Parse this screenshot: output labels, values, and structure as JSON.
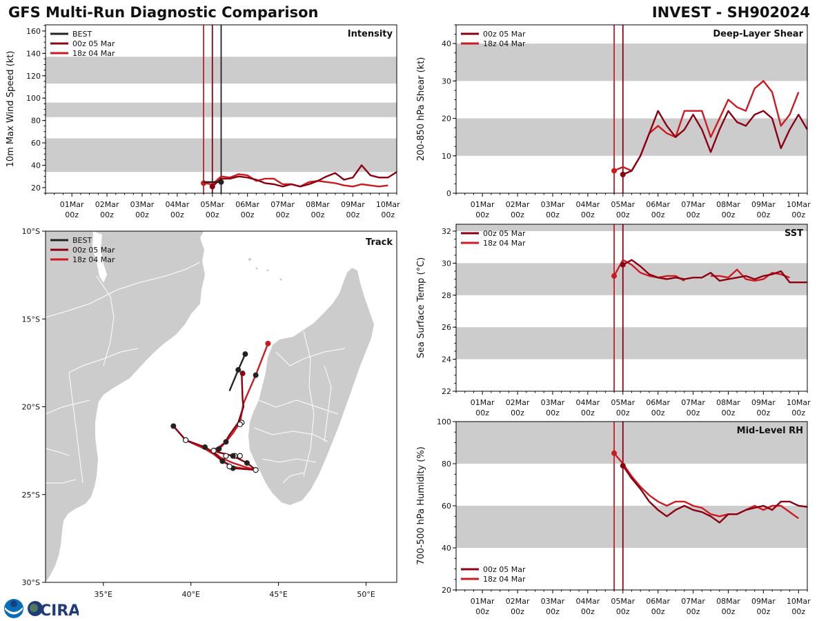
{
  "header": {
    "title_left": "GFS Multi-Run Diagnostic Comparison",
    "title_right": "INVEST - SH902024"
  },
  "logos": [
    "NOAA",
    "CIRA"
  ],
  "colors": {
    "best": "#222222",
    "run_00z_05mar": "#8b0010",
    "run_18z_04mar": "#cc1a22",
    "band": "#cccccc",
    "land": "#cccccc",
    "border": "#ffffff"
  },
  "legend": {
    "best": "BEST",
    "run_a": "00z 05 Mar",
    "run_b": "18z 04 Mar"
  },
  "time_axis": {
    "tick_labels_top": [
      "01Mar",
      "02Mar",
      "03Mar",
      "04Mar",
      "05Mar",
      "06Mar",
      "07Mar",
      "08Mar",
      "09Mar",
      "10Mar"
    ],
    "tick_label_bottom": "00z",
    "range_days": [
      -0.75,
      9.25
    ],
    "init_lines": {
      "run_b_day": 3.75,
      "run_a_day": 4.0,
      "best_last_day": 4.25
    }
  },
  "chart_data": [
    {
      "id": "intensity",
      "type": "line",
      "title": "Intensity",
      "ylabel": "10m Max Wind Speed (kt)",
      "ylim": [
        15,
        165.5
      ],
      "yticks": [
        20,
        40,
        60,
        80,
        100,
        120,
        140,
        160
      ],
      "bands": [
        [
          34,
          64
        ],
        [
          83,
          96
        ],
        [
          113,
          137
        ]
      ],
      "x_unit": "days since 01Mar 00z",
      "series": [
        {
          "name": "BEST",
          "key": "best",
          "x": [
            3.75,
            4.0,
            4.25
          ],
          "values": [
            25,
            25,
            25
          ],
          "marker_x": [
            4.25
          ],
          "marker_values": [
            25
          ]
        },
        {
          "name": "00z 05 Mar",
          "key": "run_a",
          "x": [
            4.0,
            4.25,
            4.5,
            4.75,
            5.0,
            5.25,
            5.5,
            5.75,
            6.0,
            6.25,
            6.5,
            6.75,
            7.0,
            7.25,
            7.5,
            7.75,
            8.0,
            8.25,
            8.5,
            8.75,
            9.0,
            9.25
          ],
          "values": [
            21,
            28,
            28,
            30,
            29,
            27,
            24,
            23,
            21,
            23,
            21,
            23,
            26,
            30,
            33,
            27,
            29,
            40,
            31,
            29,
            29,
            34
          ],
          "marker_x": [
            4.0
          ],
          "marker_values": [
            21
          ]
        },
        {
          "name": "18z 04 Mar",
          "key": "run_b",
          "x": [
            3.75,
            4.0,
            4.25,
            4.5,
            4.75,
            5.0,
            5.25,
            5.5,
            5.75,
            6.0,
            6.25,
            6.5,
            6.75,
            7.0,
            7.25,
            7.5,
            7.75,
            8.0,
            8.25,
            8.5,
            8.75,
            9.0
          ],
          "values": [
            24,
            23,
            30,
            29,
            32,
            31,
            26,
            28,
            28,
            23,
            23,
            21,
            25,
            26,
            25,
            24,
            22,
            21,
            23,
            22,
            21,
            22
          ],
          "marker_x": [
            3.75
          ],
          "marker_values": [
            24
          ]
        }
      ]
    },
    {
      "id": "shear",
      "type": "line",
      "title": "Deep-Layer Shear",
      "ylabel": "200-850 hPa Shear (kt)",
      "ylim": [
        0,
        45
      ],
      "yticks": [
        0,
        10,
        20,
        30,
        40
      ],
      "bands": [
        [
          10,
          20
        ],
        [
          30,
          40
        ]
      ],
      "series": [
        {
          "name": "00z 05 Mar",
          "key": "run_a",
          "x": [
            4.0,
            4.25,
            4.5,
            4.75,
            5.0,
            5.25,
            5.5,
            5.75,
            6.0,
            6.25,
            6.5,
            6.75,
            7.0,
            7.25,
            7.5,
            7.75,
            8.0,
            8.25,
            8.5,
            8.75,
            9.0,
            9.25
          ],
          "values": [
            5,
            6,
            10,
            16,
            22,
            18,
            15,
            17,
            21,
            17,
            11,
            17,
            22,
            19,
            18,
            21,
            22,
            20,
            12,
            17,
            21,
            17
          ],
          "marker_x": [
            4.0
          ],
          "marker_values": [
            5
          ]
        },
        {
          "name": "18z 04 Mar",
          "key": "run_b",
          "x": [
            3.75,
            4.0,
            4.25,
            4.5,
            4.75,
            5.0,
            5.25,
            5.5,
            5.75,
            6.0,
            6.25,
            6.5,
            6.75,
            7.0,
            7.25,
            7.5,
            7.75,
            8.0,
            8.25,
            8.5,
            8.75,
            9.0
          ],
          "values": [
            6,
            7,
            6,
            10,
            16,
            18,
            16,
            15,
            22,
            22,
            22,
            15,
            20,
            25,
            23,
            22,
            28,
            30,
            27,
            18,
            21,
            27
          ],
          "marker_x": [
            3.75
          ],
          "marker_values": [
            6
          ]
        }
      ]
    },
    {
      "id": "sst",
      "type": "line",
      "title": "SST",
      "ylabel": "Sea Surface Temp (°C)",
      "ylim": [
        22,
        32.43
      ],
      "yticks": [
        22,
        24,
        26,
        28,
        30,
        32
      ],
      "bands": [
        [
          24,
          26
        ],
        [
          28,
          30
        ],
        [
          32,
          34
        ]
      ],
      "series": [
        {
          "name": "00z 05 Mar",
          "key": "run_a",
          "x": [
            4.0,
            4.25,
            4.5,
            4.75,
            5.0,
            5.25,
            5.5,
            5.75,
            6.0,
            6.25,
            6.5,
            6.75,
            7.0,
            7.25,
            7.5,
            7.75,
            8.0,
            8.25,
            8.5,
            8.75,
            9.0,
            9.25
          ],
          "values": [
            29.9,
            30.2,
            29.8,
            29.3,
            29.1,
            29.0,
            29.1,
            29.0,
            29.1,
            29.1,
            29.4,
            28.9,
            29.0,
            29.1,
            29.2,
            29.0,
            29.2,
            29.3,
            29.5,
            28.8,
            28.8,
            28.8
          ],
          "marker_x": [
            4.0
          ],
          "marker_values": [
            29.9
          ]
        },
        {
          "name": "18z 04 Mar",
          "key": "run_b",
          "x": [
            3.75,
            4.0,
            4.25,
            4.5,
            4.75,
            5.0,
            5.25,
            5.5,
            5.75,
            6.0,
            6.25,
            6.5,
            6.75,
            7.0,
            7.25,
            7.5,
            7.75,
            8.0,
            8.25,
            8.5,
            8.75,
            9.0
          ],
          "values": [
            29.2,
            30.2,
            29.9,
            29.4,
            29.2,
            29.1,
            29.2,
            29.2,
            28.9,
            null,
            null,
            29.2,
            29.2,
            29.1,
            29.6,
            29.0,
            28.9,
            29.0,
            29.4,
            29.3,
            29.1,
            null
          ],
          "marker_x": [
            3.75
          ],
          "marker_values": [
            29.2
          ]
        }
      ]
    },
    {
      "id": "rh",
      "type": "line",
      "title": "Mid-Level RH",
      "ylabel": "700-500 hPa Humidity (%)",
      "ylim": [
        20,
        100
      ],
      "yticks": [
        20,
        40,
        60,
        80,
        100
      ],
      "bands": [
        [
          40,
          60
        ],
        [
          80,
          100
        ]
      ],
      "legend_position": "bottom-left",
      "series": [
        {
          "name": "00z 05 Mar",
          "key": "run_a",
          "x": [
            4.0,
            4.25,
            4.5,
            4.75,
            5.0,
            5.25,
            5.5,
            5.75,
            6.0,
            6.25,
            6.5,
            6.75,
            7.0,
            7.25,
            7.5,
            7.75,
            8.0,
            8.25,
            8.5,
            8.75,
            9.0,
            9.25
          ],
          "values": [
            79,
            73,
            68,
            62,
            58,
            55,
            58,
            60,
            58,
            57,
            55,
            52,
            56,
            56,
            58,
            59,
            60,
            58,
            62,
            62,
            60,
            59.5
          ],
          "marker_x": [
            4.0
          ],
          "marker_values": [
            79
          ]
        },
        {
          "name": "18z 04 Mar",
          "key": "run_b",
          "x": [
            3.75,
            4.0,
            4.25,
            4.5,
            4.75,
            5.0,
            5.25,
            5.5,
            5.75,
            6.0,
            6.25,
            6.5,
            6.75,
            7.0,
            7.25,
            7.5,
            7.75,
            8.0,
            8.25,
            8.5,
            8.75,
            9.0
          ],
          "values": [
            85,
            80,
            74,
            69,
            65,
            62,
            60,
            62,
            62,
            60,
            59,
            56,
            55,
            56,
            56,
            58,
            60,
            58,
            60,
            60,
            57,
            54
          ],
          "marker_x": [
            3.75
          ],
          "marker_values": [
            85
          ]
        }
      ]
    },
    {
      "id": "track",
      "type": "scatter",
      "title": "Track",
      "xlabel": "",
      "ylabel": "",
      "lon_range": [
        31.7,
        51.75
      ],
      "lat_range": [
        -30,
        -10
      ],
      "lon_ticks": [
        "35°E",
        "40°E",
        "45°E",
        "50°E"
      ],
      "lon_tick_values": [
        35,
        40,
        45,
        50
      ],
      "lat_ticks": [
        "10°S",
        "15°S",
        "20°S",
        "25°S",
        "30°S"
      ],
      "lat_tick_values": [
        -10,
        -15,
        -20,
        -25,
        -30
      ],
      "series": [
        {
          "name": "BEST",
          "key": "best",
          "lon": [
            42.2,
            42.7,
            43.1
          ],
          "lat": [
            -19.1,
            -17.9,
            -17.0
          ],
          "filled_markers": [
            [
              42.7,
              -17.9
            ],
            [
              43.1,
              -17.0
            ]
          ],
          "open_markers": []
        },
        {
          "name": "00z 05 Mar",
          "key": "run_a",
          "lon": [
            42.9,
            42.95,
            43.0,
            42.7,
            42.2,
            41.9,
            41.6,
            41.3,
            41.6,
            42.0,
            42.4,
            42.8,
            43.2,
            43.7,
            42.4,
            42.2,
            41.8,
            41.3,
            40.8,
            39.7,
            39.0
          ],
          "lat": [
            -18.1,
            -19.6,
            -20.0,
            -20.9,
            -21.6,
            -22.1,
            -22.4,
            -22.5,
            -22.6,
            -22.7,
            -22.8,
            -23.0,
            -23.2,
            -23.6,
            -23.5,
            -23.3,
            -23.1,
            -22.6,
            -22.3,
            -21.9,
            -21.1
          ],
          "filled_markers": [
            [
              42.95,
              -18.1
            ],
            [
              41.6,
              -22.4
            ],
            [
              42.4,
              -22.8
            ],
            [
              43.2,
              -23.2
            ],
            [
              42.4,
              -23.5
            ],
            [
              41.8,
              -23.1
            ],
            [
              40.8,
              -22.3
            ],
            [
              39.0,
              -21.1
            ]
          ],
          "open_markers": [
            [
              42.8,
              -21.0
            ],
            [
              41.3,
              -22.5
            ],
            [
              42.0,
              -22.8
            ],
            [
              42.8,
              -22.8
            ],
            [
              43.7,
              -23.6
            ],
            [
              42.2,
              -23.4
            ],
            [
              39.7,
              -21.9
            ]
          ]
        },
        {
          "name": "18z 04 Mar",
          "key": "run_b",
          "lon": [
            44.4,
            43.7,
            43.0,
            42.8,
            42.4,
            42.0,
            41.6,
            41.2,
            41.7,
            42.4,
            43.0,
            43.7,
            42.9,
            42.3,
            41.8,
            41.3,
            40.8,
            39.7,
            39.0
          ],
          "lat": [
            -16.4,
            -18.2,
            -19.8,
            -20.9,
            -21.5,
            -22.0,
            -22.3,
            -22.5,
            -22.9,
            -23.2,
            -23.4,
            -23.6,
            -23.5,
            -23.4,
            -23.1,
            -22.7,
            -22.4,
            -21.9,
            -21.1
          ],
          "filled_markers": [
            [
              44.4,
              -16.4
            ],
            [
              43.7,
              -18.2
            ],
            [
              42.0,
              -22.0
            ],
            [
              42.5,
              -22.8
            ]
          ],
          "open_markers": [
            [
              42.9,
              -20.9
            ],
            [
              42.5,
              -22.8
            ]
          ]
        }
      ]
    }
  ]
}
